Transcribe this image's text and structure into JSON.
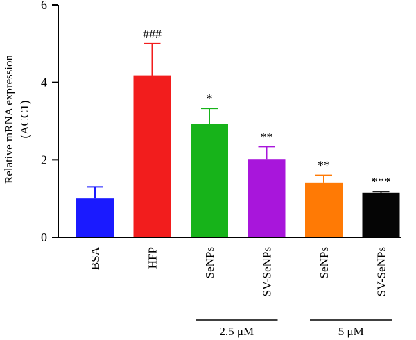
{
  "chart_data": {
    "type": "bar",
    "ylabel_lines": [
      "Relative mRNA expression",
      "(ACC1)"
    ],
    "ylim": [
      0,
      6
    ],
    "yticks": [
      "0",
      "2",
      "4",
      "6"
    ],
    "grid": false,
    "categories": [
      "BSA",
      "HFP",
      "SeNPs",
      "SV-SeNPs",
      "SeNPs",
      "SV-SeNPs"
    ],
    "values": [
      1.0,
      4.18,
      2.93,
      2.02,
      1.4,
      1.15
    ],
    "errors": [
      0.3,
      0.82,
      0.4,
      0.32,
      0.2,
      0.03
    ],
    "colors": [
      "#1a1aff",
      "#f21d1d",
      "#17b31a",
      "#a816db",
      "#ff7a05",
      "#050505"
    ],
    "significance": [
      "",
      "###",
      "*",
      "**",
      "**",
      "***"
    ],
    "groups": [
      {
        "label": "2.5 μM",
        "categories": [
          2,
          3
        ]
      },
      {
        "label": "5 μM",
        "categories": [
          4,
          5
        ]
      }
    ]
  }
}
